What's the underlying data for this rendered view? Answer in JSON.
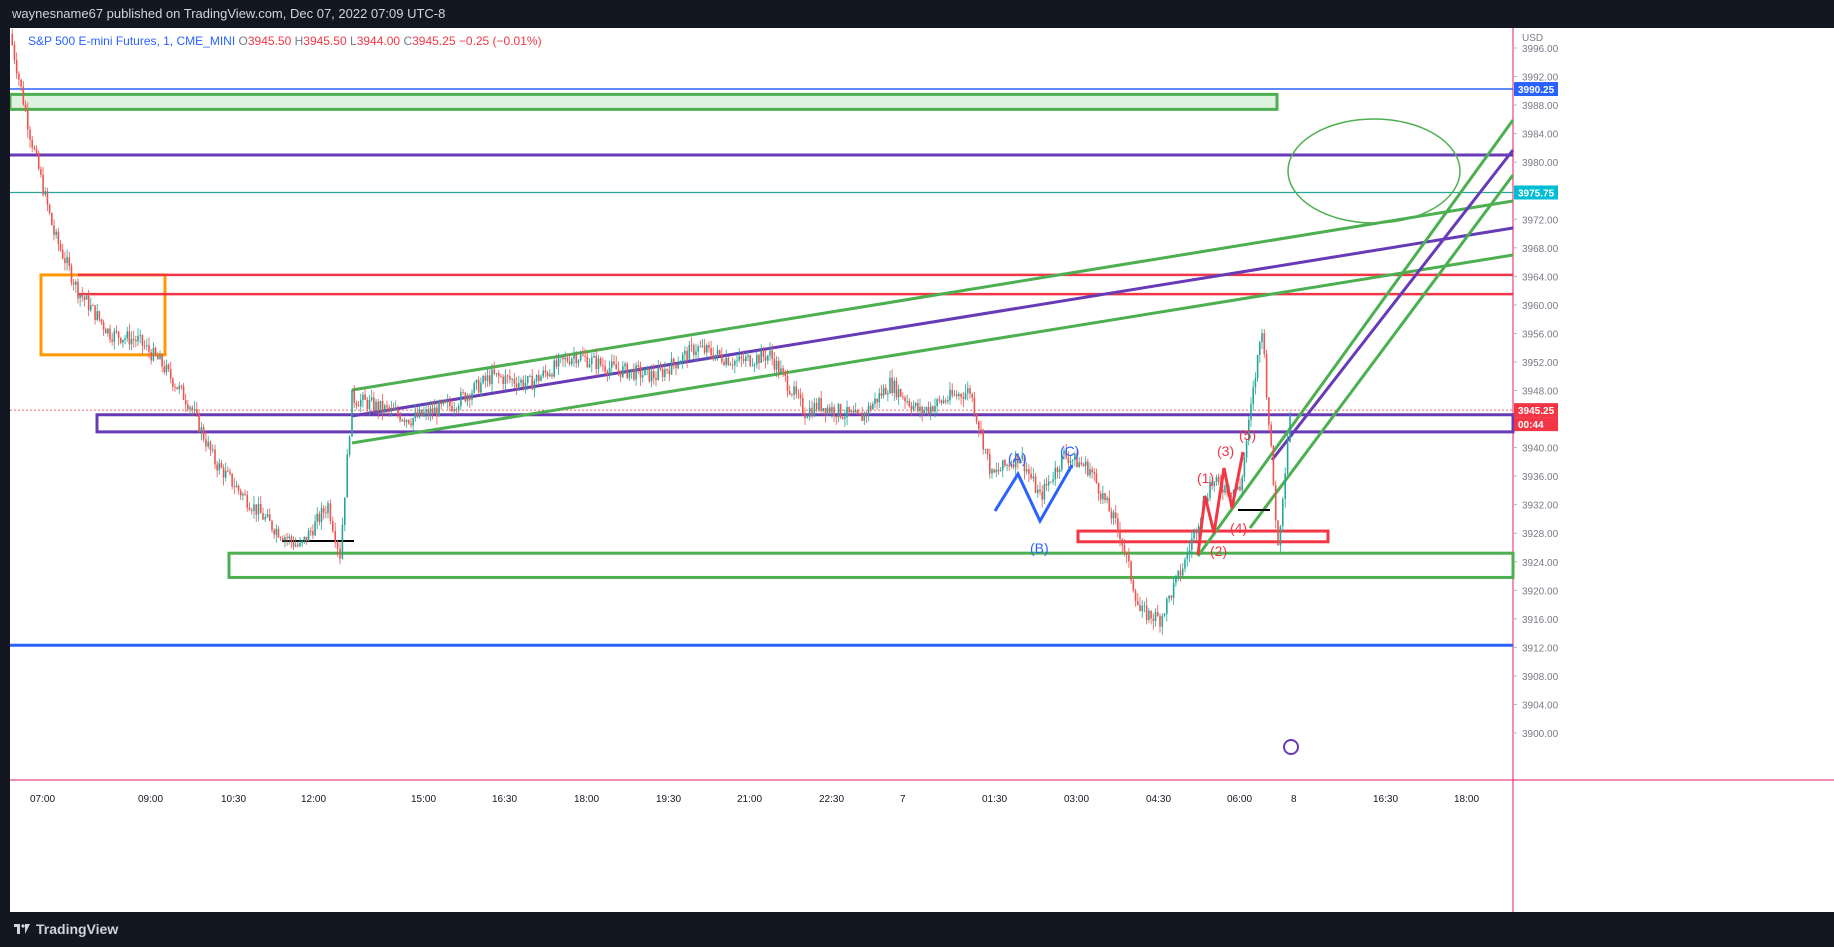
{
  "header": {
    "published_text": "waynesname67 published on TradingView.com, Dec 07, 2022 07:09 UTC-8"
  },
  "legend": {
    "symbol": "S&P 500 E-mini Futures, 1, CME_MINI",
    "o_label": "O",
    "o_value": "3945.50",
    "h_label": "H",
    "h_value": "3945.50",
    "l_label": "L",
    "l_value": "3944.00",
    "c_label": "C",
    "c_value": "3945.25",
    "change": "−0.25 (−0.01%)"
  },
  "footer": {
    "brand": "TradingView",
    "brand_icon": "tradingview-logo-icon"
  },
  "price_axis": {
    "currency": "USD",
    "labels": [
      "3996.00",
      "3992.00",
      "3988.00",
      "3984.00",
      "3980.00",
      "3976.00",
      "3972.00",
      "3968.00",
      "3964.00",
      "3960.00",
      "3956.00",
      "3952.00",
      "3948.00",
      "3944.00",
      "3940.00",
      "3936.00",
      "3932.00",
      "3928.00",
      "3924.00",
      "3920.00",
      "3916.00",
      "3912.00",
      "3908.00",
      "3904.00",
      "3900.00"
    ],
    "badges": [
      {
        "text": "3990.25",
        "color": "#2962ff"
      },
      {
        "text": "3975.75",
        "color": "#00bcd4"
      },
      {
        "text": "3945.25",
        "color": "#f23645"
      },
      {
        "text": "00:44",
        "color": "#f23645"
      }
    ]
  },
  "chart_data": {
    "type": "line",
    "title": "S&P 500 E-mini Futures, 1, CME_MINI",
    "ylabel": "USD",
    "ylim": [
      3897,
      3999
    ],
    "x_ticks": [
      "07:00",
      "09:00",
      "10:30",
      "12:00",
      "15:00",
      "16:30",
      "18:00",
      "19:30",
      "21:00",
      "22:30",
      "7",
      "01:30",
      "03:00",
      "04:30",
      "06:00",
      "8",
      "16:30",
      "18:00"
    ],
    "series": [
      {
        "name": "",
        "x": [
          "07:00",
          "07:30",
          "08:00",
          "08:30",
          "09:00",
          "09:30",
          "10:00",
          "10:30",
          "11:00",
          "11:30",
          "12:00",
          "12:30",
          "13:00",
          "13:30",
          "14:00",
          "15:00",
          "16:00",
          "16:30",
          "17:00",
          "18:00",
          "19:00",
          "19:30",
          "20:00",
          "21:00",
          "21:30",
          "22:00",
          "22:30",
          "23:00",
          "23:30",
          "24:00",
          "00:30",
          "01:00",
          "01:30",
          "02:00",
          "02:30",
          "03:00",
          "03:30",
          "04:00",
          "04:30",
          "05:00",
          "05:30",
          "06:00",
          "06:30",
          "07:00",
          "07:30",
          "08:00"
        ],
        "values": [
          3998,
          3984,
          3970,
          3962,
          3956,
          3955,
          3952,
          3946,
          3938,
          3933,
          3929,
          3926,
          3932,
          3925,
          3947,
          3944,
          3946,
          3950,
          3949,
          3953,
          3951,
          3950,
          3954,
          3952,
          3953,
          3945,
          3946,
          3944,
          3949,
          3945,
          3947,
          3948,
          3936,
          3939,
          3933,
          3939,
          3937,
          3928,
          3917,
          3916,
          3924,
          3935,
          3934,
          3957,
          3926,
          3945
        ]
      }
    ],
    "horizontal_levels": [
      {
        "price": 3990.25,
        "color": "#2962ff"
      },
      {
        "price": 3981,
        "color": "#673ab7"
      },
      {
        "price": 3975.75,
        "color": "#26a69a"
      },
      {
        "price": 3964.2,
        "color": "#f23645"
      },
      {
        "price": 3961.5,
        "color": "#f23645"
      },
      {
        "price": 3912.3,
        "color": "#2962ff"
      }
    ],
    "zones": [
      {
        "top": 3989.5,
        "bottom": 3987.4,
        "color": "#4caf50"
      },
      {
        "top": 3964.2,
        "bottom": 3953,
        "color": "#ff9800"
      },
      {
        "top": 3944.6,
        "bottom": 3942.2,
        "color": "#673ab7"
      },
      {
        "top": 3928.3,
        "bottom": 3926.8,
        "color": "#f23645"
      },
      {
        "top": 3925.2,
        "bottom": 3921.8,
        "color": "#4caf50"
      }
    ],
    "annotations": {
      "blue_waves": [
        "(A)",
        "(B)",
        "(C)"
      ],
      "red_waves": [
        "(1)",
        "(2)",
        "(3)",
        "(4)",
        "(5)"
      ]
    },
    "colors": {
      "up": "#26a69a",
      "down": "#ef5350",
      "blue": "#2962ff",
      "red": "#f23645",
      "green": "#4caf50",
      "purple": "#673ab7"
    },
    "grid": false,
    "legend_position": "top-left"
  }
}
